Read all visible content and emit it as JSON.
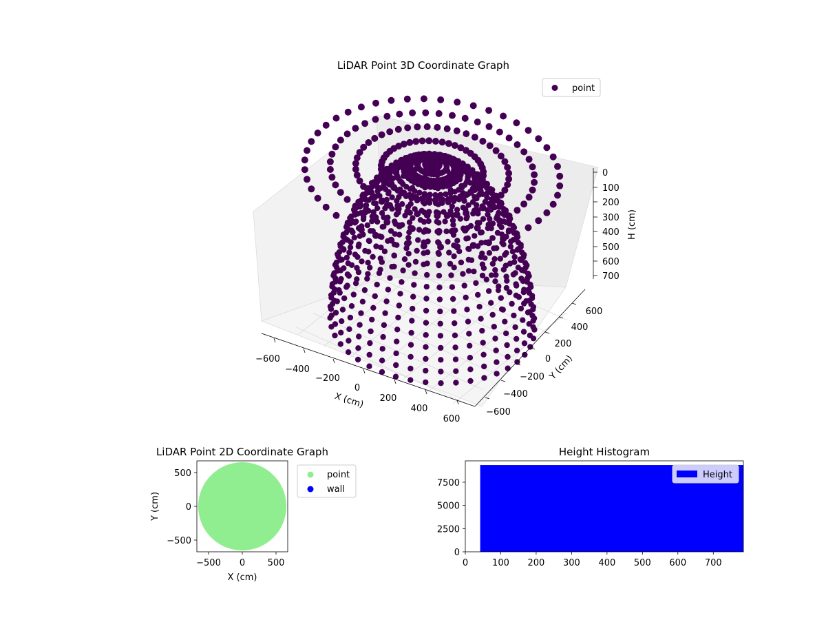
{
  "chart_data": [
    {
      "type": "scatter3d",
      "title": "LiDAR Point 3D Coordinate Graph",
      "xlabel": "X (cm)",
      "ylabel": "Y (cm)",
      "zlabel": "H (cm)",
      "xticks": [
        "−600",
        "−400",
        "−200",
        "0",
        "200",
        "400",
        "600"
      ],
      "yticks": [
        "−600",
        "−400",
        "−200",
        "0",
        "200",
        "400",
        "600"
      ],
      "zticks": [
        "0",
        "100",
        "200",
        "300",
        "400",
        "500",
        "600",
        "700"
      ],
      "xlim": [
        -660,
        660
      ],
      "ylim": [
        -660,
        660
      ],
      "zlim": [
        0,
        780
      ],
      "z_axis_inverted": true,
      "grid": true,
      "legend": {
        "position": "top-right",
        "entries": [
          {
            "name": "point",
            "color": "#440154"
          }
        ]
      },
      "series": [
        {
          "name": "point",
          "color": "#440154",
          "shape": "hemispherical dome (bowl) of scan lines, radius ≈ 660 cm, height 0–780 cm",
          "radius": 660,
          "max_height": 780
        }
      ]
    },
    {
      "type": "scatter",
      "title": "LiDAR Point 2D Coordinate Graph",
      "xlabel": "X (cm)",
      "ylabel": "Y (cm)",
      "xticks": [
        "−500",
        "0",
        "500"
      ],
      "yticks": [
        "−500",
        "0",
        "500"
      ],
      "xlim": [
        -680,
        680
      ],
      "ylim": [
        -680,
        680
      ],
      "legend": {
        "position": "outside-right",
        "entries": [
          {
            "name": "point",
            "color": "#90ee90"
          },
          {
            "name": "wall",
            "color": "#0000ff"
          }
        ]
      },
      "series": [
        {
          "name": "point",
          "color": "#90ee90",
          "shape": "filled disc, radius ≈ 660 cm"
        },
        {
          "name": "wall",
          "color": "#0000ff",
          "values": []
        }
      ]
    },
    {
      "type": "bar",
      "title": "Height Histogram",
      "xticks": [
        "0",
        "100",
        "200",
        "300",
        "400",
        "500",
        "600",
        "700"
      ],
      "yticks": [
        "0",
        "2500",
        "5000",
        "7500"
      ],
      "xlim": [
        0,
        785
      ],
      "ylim": [
        0,
        9800
      ],
      "legend": {
        "position": "top-right",
        "entries": [
          {
            "name": "Height",
            "color": "#0000ff"
          }
        ]
      },
      "series": [
        {
          "name": "Height",
          "color": "#0000ff",
          "bin_start": 42,
          "bin_end": 785,
          "value": 9350
        }
      ]
    }
  ]
}
